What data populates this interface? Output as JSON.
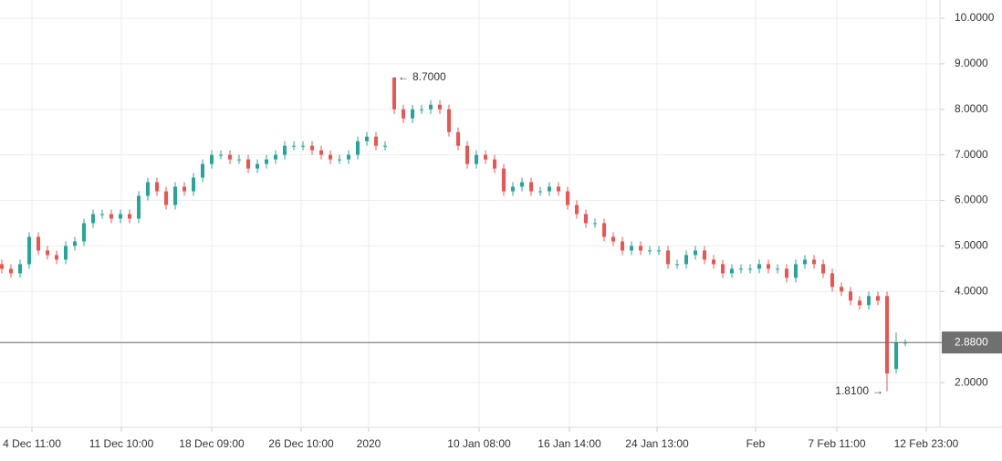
{
  "chart_data": {
    "type": "candlestick",
    "x": [
      0,
      1,
      2,
      3,
      4,
      5,
      6,
      7,
      8,
      9,
      10,
      11,
      12,
      13,
      14,
      15,
      16,
      17,
      18,
      19,
      20,
      21,
      22,
      23,
      24,
      25,
      26,
      27,
      28,
      29,
      30,
      31,
      32,
      33,
      34,
      35,
      36,
      37,
      38,
      39,
      40,
      41,
      42,
      43,
      44,
      45,
      46,
      47,
      48,
      49,
      50,
      51,
      52,
      53,
      54,
      55,
      56,
      57,
      58,
      59,
      60,
      61,
      62,
      63,
      64,
      65,
      66,
      67,
      68,
      69,
      70,
      71,
      72,
      73,
      74,
      75,
      76,
      77,
      78,
      79,
      80,
      81,
      82,
      83,
      84,
      85,
      86,
      87,
      88,
      89,
      90,
      91,
      92,
      93,
      94,
      95,
      96,
      97,
      98,
      99
    ],
    "open": [
      4.6,
      4.5,
      4.4,
      4.6,
      5.2,
      4.9,
      4.8,
      4.7,
      5.0,
      5.1,
      5.5,
      5.7,
      5.7,
      5.6,
      5.7,
      5.6,
      6.1,
      6.4,
      6.2,
      5.9,
      6.3,
      6.2,
      6.5,
      6.8,
      7.0,
      7.0,
      6.9,
      6.9,
      6.7,
      6.8,
      6.9,
      7.0,
      7.2,
      7.2,
      7.2,
      7.1,
      7.0,
      6.9,
      6.9,
      7.0,
      7.3,
      7.4,
      7.2,
      8.7,
      8.0,
      7.8,
      8.0,
      8.0,
      8.1,
      8.0,
      7.5,
      7.2,
      6.8,
      7.0,
      6.9,
      6.7,
      6.2,
      6.3,
      6.4,
      6.2,
      6.2,
      6.3,
      6.2,
      5.9,
      5.7,
      5.5,
      5.5,
      5.2,
      5.1,
      4.9,
      5.0,
      4.9,
      4.9,
      4.9,
      4.6,
      4.6,
      4.8,
      4.9,
      4.7,
      4.6,
      4.4,
      4.5,
      4.5,
      4.5,
      4.6,
      4.5,
      4.5,
      4.3,
      4.6,
      4.7,
      4.6,
      4.4,
      4.1,
      4.0,
      3.8,
      3.7,
      3.9,
      3.9,
      2.3,
      2.88
    ],
    "high": [
      4.7,
      4.6,
      4.7,
      5.3,
      5.3,
      5.0,
      4.9,
      5.1,
      5.2,
      5.6,
      5.8,
      5.8,
      5.8,
      5.8,
      5.8,
      6.2,
      6.5,
      6.5,
      6.3,
      6.4,
      6.4,
      6.6,
      6.9,
      7.1,
      7.1,
      7.1,
      7.0,
      7.0,
      6.9,
      7.0,
      7.1,
      7.3,
      7.3,
      7.3,
      7.3,
      7.2,
      7.1,
      7.0,
      7.1,
      7.4,
      7.5,
      7.5,
      7.3,
      8.7,
      8.1,
      8.1,
      8.1,
      8.2,
      8.2,
      8.1,
      7.6,
      7.3,
      7.1,
      7.1,
      7.0,
      6.8,
      6.4,
      6.5,
      6.5,
      6.3,
      6.4,
      6.4,
      6.3,
      6.0,
      5.8,
      5.6,
      5.6,
      5.3,
      5.2,
      5.1,
      5.1,
      5.0,
      5.0,
      5.0,
      4.7,
      4.9,
      5.0,
      5.0,
      4.8,
      4.7,
      4.6,
      4.6,
      4.6,
      4.7,
      4.7,
      4.6,
      4.6,
      4.7,
      4.8,
      4.8,
      4.7,
      4.5,
      4.2,
      4.1,
      3.9,
      4.0,
      4.0,
      4.0,
      3.1,
      2.95
    ],
    "low": [
      4.4,
      4.3,
      4.3,
      4.5,
      4.8,
      4.7,
      4.6,
      4.6,
      4.9,
      5.0,
      5.4,
      5.6,
      5.5,
      5.5,
      5.5,
      5.5,
      6.0,
      6.1,
      5.8,
      5.8,
      6.1,
      6.1,
      6.4,
      6.7,
      6.9,
      6.8,
      6.8,
      6.6,
      6.6,
      6.7,
      6.8,
      6.9,
      7.1,
      7.1,
      7.0,
      6.9,
      6.8,
      6.8,
      6.8,
      6.9,
      7.2,
      7.1,
      7.1,
      7.9,
      7.7,
      7.7,
      7.9,
      7.9,
      7.9,
      7.4,
      7.1,
      6.7,
      6.7,
      6.8,
      6.6,
      6.1,
      6.1,
      6.2,
      6.1,
      6.1,
      6.1,
      6.1,
      5.8,
      5.6,
      5.4,
      5.4,
      5.1,
      5.0,
      4.8,
      4.8,
      4.8,
      4.8,
      4.8,
      4.5,
      4.5,
      4.5,
      4.7,
      4.6,
      4.5,
      4.3,
      4.3,
      4.4,
      4.4,
      4.4,
      4.4,
      4.4,
      4.2,
      4.2,
      4.5,
      4.5,
      4.3,
      4.0,
      3.9,
      3.7,
      3.6,
      3.6,
      3.7,
      1.81,
      2.2,
      2.8
    ],
    "close": [
      4.5,
      4.4,
      4.6,
      5.2,
      4.9,
      4.8,
      4.7,
      5.0,
      5.1,
      5.5,
      5.7,
      5.7,
      5.6,
      5.7,
      5.6,
      6.1,
      6.4,
      6.2,
      5.9,
      6.3,
      6.2,
      6.5,
      6.8,
      7.0,
      7.0,
      6.9,
      6.9,
      6.7,
      6.8,
      6.9,
      7.0,
      7.2,
      7.2,
      7.2,
      7.1,
      7.0,
      6.9,
      6.9,
      7.0,
      7.3,
      7.4,
      7.2,
      7.2,
      8.0,
      7.8,
      8.0,
      8.0,
      8.1,
      8.0,
      7.5,
      7.2,
      6.8,
      7.0,
      6.9,
      6.7,
      6.2,
      6.3,
      6.4,
      6.2,
      6.2,
      6.3,
      6.2,
      5.9,
      5.7,
      5.5,
      5.5,
      5.2,
      5.1,
      4.9,
      5.0,
      4.9,
      4.9,
      4.9,
      4.6,
      4.6,
      4.8,
      4.9,
      4.7,
      4.6,
      4.4,
      4.5,
      4.5,
      4.5,
      4.6,
      4.5,
      4.5,
      4.3,
      4.6,
      4.7,
      4.6,
      4.4,
      4.1,
      4.0,
      3.8,
      3.7,
      3.9,
      3.8,
      2.2,
      2.88,
      2.88
    ],
    "up_color": "#26a69a",
    "down_color": "#ef5350",
    "xlim": [
      -0.2,
      102.8
    ],
    "xticks": [
      {
        "value": 3.3,
        "label": "4 Dec 11:00"
      },
      {
        "value": 13.1,
        "label": "11 Dec 10:00"
      },
      {
        "value": 23,
        "label": "18 Dec 09:00"
      },
      {
        "value": 32.8,
        "label": "26 Dec 10:00"
      },
      {
        "value": 40.2,
        "label": "2020"
      },
      {
        "value": 52.3,
        "label": "10 Jan 08:00"
      },
      {
        "value": 62.2,
        "label": "16 Jan 14:00"
      },
      {
        "value": 71.8,
        "label": "24 Jan 13:00"
      },
      {
        "value": 82.6,
        "label": "Feb"
      },
      {
        "value": 91.5,
        "label": "7 Feb 11:00"
      },
      {
        "value": 101.3,
        "label": "12 Feb 23:00"
      }
    ],
    "ylim": [
      1.02,
      10.4
    ],
    "yticks": [
      {
        "value": 2,
        "label": "2.0000"
      },
      {
        "value": 4,
        "label": "4.0000"
      },
      {
        "value": 5,
        "label": "5.0000"
      },
      {
        "value": 6,
        "label": "6.0000"
      },
      {
        "value": 7,
        "label": "7.0000"
      },
      {
        "value": 8,
        "label": "8.0000"
      },
      {
        "value": 9,
        "label": "9.0000"
      },
      {
        "value": 10,
        "label": "10.0000"
      }
    ],
    "grid": true,
    "last_price": {
      "value": 2.88,
      "label": "2.8800"
    },
    "annotations": [
      {
        "x": 43,
        "value": 8.7,
        "label": "8.7000",
        "side": "right"
      },
      {
        "x": 97,
        "value": 1.81,
        "label": "1.8100",
        "side": "left"
      }
    ]
  }
}
